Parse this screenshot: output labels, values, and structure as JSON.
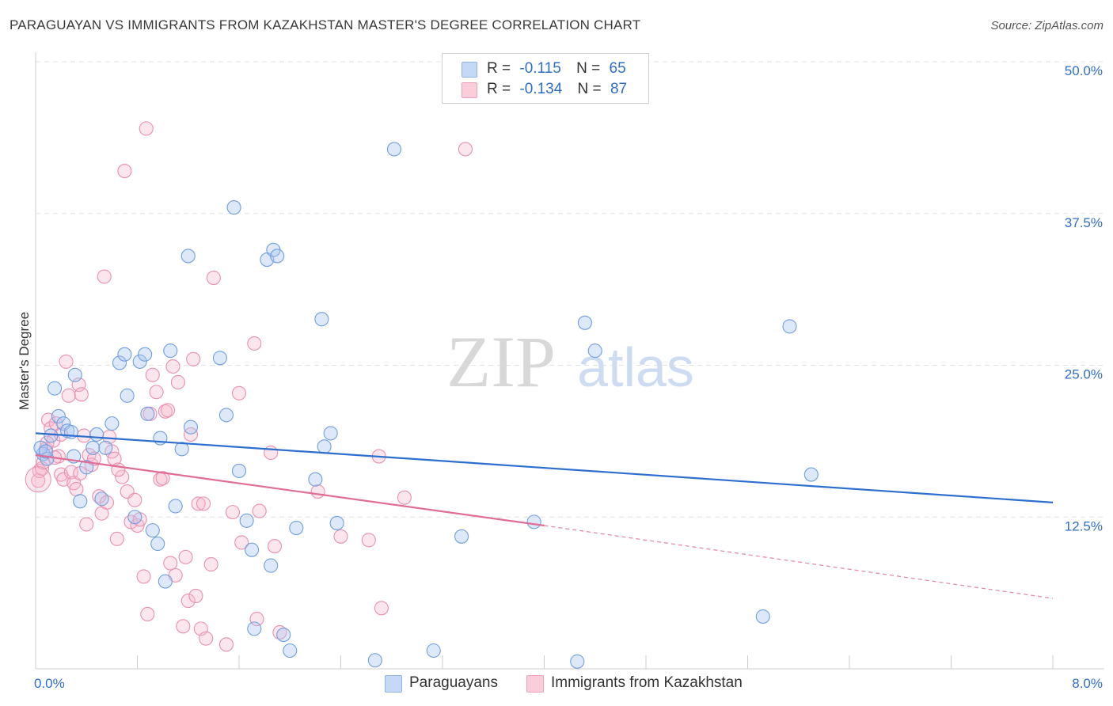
{
  "title": "PARAGUAYAN VS IMMIGRANTS FROM KAZAKHSTAN MASTER'S DEGREE CORRELATION CHART",
  "source": "Source: ZipAtlas.com",
  "watermark": {
    "zip": "ZIP",
    "atlas": "atlas"
  },
  "legend": {
    "rows": [
      {
        "r_label": "R =",
        "r_value": "-0.115",
        "n_label": "N =",
        "n_value": "65",
        "color": "#a9c6f0"
      },
      {
        "r_label": "R =",
        "r_value": "-0.134",
        "n_label": "N =",
        "n_value": "87",
        "color": "#f6b8cc"
      }
    ]
  },
  "bottom_legend": [
    {
      "label": "Paraguayans",
      "color": "#a9c6f0"
    },
    {
      "label": "Immigrants from Kazakhstan",
      "color": "#f6b8cc"
    }
  ],
  "chart_data": {
    "type": "scatter",
    "title": "PARAGUAYAN VS IMMIGRANTS FROM KAZAKHSTAN MASTER'S DEGREE CORRELATION CHART",
    "xlabel": "",
    "ylabel": "Master's Degree",
    "xlim": [
      0,
      8
    ],
    "ylim": [
      0,
      50
    ],
    "x_tick_labels": [
      "0.0%",
      "8.0%"
    ],
    "y_ticks": [
      12.5,
      25.0,
      37.5,
      50.0
    ],
    "y_tick_labels": [
      "12.5%",
      "25.0%",
      "37.5%",
      "50.0%"
    ],
    "grid": true,
    "legend_position": "top-center",
    "series": [
      {
        "name": "Paraguayans",
        "color": "#a9c6f0",
        "stroke": "#6f9fe0",
        "trend": {
          "x": [
            0,
            8
          ],
          "y": [
            19.4,
            13.7
          ],
          "color": "#2c6fce"
        },
        "points": [
          [
            0.06,
            17.7
          ],
          [
            0.09,
            17.3
          ],
          [
            0.12,
            19.2
          ],
          [
            0.15,
            23.1
          ],
          [
            0.18,
            20.8
          ],
          [
            0.22,
            20.2
          ],
          [
            0.25,
            19.6
          ],
          [
            0.28,
            19.5
          ],
          [
            0.31,
            24.2
          ],
          [
            0.35,
            13.8
          ],
          [
            0.4,
            16.6
          ],
          [
            0.45,
            18.2
          ],
          [
            0.48,
            19.3
          ],
          [
            0.52,
            14.0
          ],
          [
            0.55,
            18.2
          ],
          [
            0.6,
            20.2
          ],
          [
            0.66,
            25.2
          ],
          [
            0.7,
            25.9
          ],
          [
            0.72,
            22.5
          ],
          [
            0.78,
            12.5
          ],
          [
            0.82,
            25.3
          ],
          [
            0.86,
            25.9
          ],
          [
            0.88,
            21.0
          ],
          [
            0.92,
            11.4
          ],
          [
            0.96,
            10.3
          ],
          [
            0.98,
            19.0
          ],
          [
            1.02,
            7.2
          ],
          [
            1.06,
            26.2
          ],
          [
            1.1,
            13.4
          ],
          [
            1.15,
            18.1
          ],
          [
            1.2,
            34.0
          ],
          [
            1.22,
            19.9
          ],
          [
            1.45,
            25.6
          ],
          [
            1.5,
            20.9
          ],
          [
            1.56,
            38.0
          ],
          [
            1.6,
            16.3
          ],
          [
            1.66,
            12.2
          ],
          [
            1.7,
            9.8
          ],
          [
            1.72,
            3.3
          ],
          [
            1.82,
            33.7
          ],
          [
            1.85,
            8.5
          ],
          [
            1.87,
            34.5
          ],
          [
            1.9,
            34.0
          ],
          [
            1.95,
            2.8
          ],
          [
            2.0,
            1.5
          ],
          [
            2.05,
            11.6
          ],
          [
            2.2,
            15.6
          ],
          [
            2.25,
            28.8
          ],
          [
            2.27,
            18.3
          ],
          [
            2.32,
            19.4
          ],
          [
            2.37,
            12.0
          ],
          [
            2.67,
            0.7
          ],
          [
            2.82,
            42.8
          ],
          [
            3.13,
            1.5
          ],
          [
            3.35,
            10.9
          ],
          [
            3.92,
            12.1
          ],
          [
            4.26,
            0.6
          ],
          [
            4.32,
            28.5
          ],
          [
            4.4,
            26.2
          ],
          [
            5.72,
            4.3
          ],
          [
            5.93,
            28.2
          ],
          [
            6.1,
            16.0
          ],
          [
            0.04,
            18.2
          ],
          [
            0.08,
            17.9
          ],
          [
            0.3,
            17.5
          ]
        ]
      },
      {
        "name": "Immigrants from Kazakhstan",
        "color": "#f6b8cc",
        "stroke": "#ea8fae",
        "trend": {
          "x": [
            0,
            4.0
          ],
          "y": [
            17.6,
            11.8
          ],
          "dash_x": [
            4.0,
            8.0
          ],
          "dash_y": [
            11.8,
            5.8
          ],
          "color": "#e06d96"
        },
        "points": [
          [
            0.02,
            15.5
          ],
          [
            0.03,
            16.3
          ],
          [
            0.05,
            16.5
          ],
          [
            0.08,
            18.1
          ],
          [
            0.1,
            20.5
          ],
          [
            0.12,
            19.8
          ],
          [
            0.14,
            18.8
          ],
          [
            0.16,
            20.2
          ],
          [
            0.18,
            17.5
          ],
          [
            0.2,
            16.0
          ],
          [
            0.22,
            15.6
          ],
          [
            0.24,
            25.3
          ],
          [
            0.26,
            22.5
          ],
          [
            0.28,
            16.2
          ],
          [
            0.3,
            15.3
          ],
          [
            0.32,
            14.8
          ],
          [
            0.34,
            23.4
          ],
          [
            0.36,
            22.6
          ],
          [
            0.38,
            19.2
          ],
          [
            0.4,
            11.9
          ],
          [
            0.42,
            17.6
          ],
          [
            0.44,
            16.8
          ],
          [
            0.46,
            17.3
          ],
          [
            0.5,
            14.2
          ],
          [
            0.52,
            12.8
          ],
          [
            0.54,
            32.3
          ],
          [
            0.56,
            13.7
          ],
          [
            0.58,
            19.1
          ],
          [
            0.6,
            17.9
          ],
          [
            0.62,
            17.3
          ],
          [
            0.64,
            10.7
          ],
          [
            0.68,
            15.8
          ],
          [
            0.7,
            41.0
          ],
          [
            0.72,
            14.6
          ],
          [
            0.75,
            12.1
          ],
          [
            0.78,
            13.9
          ],
          [
            0.8,
            11.8
          ],
          [
            0.82,
            12.3
          ],
          [
            0.85,
            7.6
          ],
          [
            0.87,
            44.5
          ],
          [
            0.88,
            4.5
          ],
          [
            0.9,
            21.0
          ],
          [
            0.92,
            24.2
          ],
          [
            0.95,
            22.8
          ],
          [
            0.98,
            15.6
          ],
          [
            1.0,
            15.7
          ],
          [
            1.02,
            21.2
          ],
          [
            1.04,
            21.3
          ],
          [
            1.06,
            8.7
          ],
          [
            1.08,
            24.9
          ],
          [
            1.1,
            7.7
          ],
          [
            1.12,
            23.6
          ],
          [
            1.16,
            3.5
          ],
          [
            1.18,
            9.2
          ],
          [
            1.2,
            5.6
          ],
          [
            1.22,
            19.3
          ],
          [
            1.24,
            25.5
          ],
          [
            1.26,
            6.0
          ],
          [
            1.28,
            13.6
          ],
          [
            1.3,
            3.3
          ],
          [
            1.32,
            13.6
          ],
          [
            1.34,
            2.5
          ],
          [
            1.38,
            8.6
          ],
          [
            1.4,
            32.2
          ],
          [
            1.5,
            2.0
          ],
          [
            1.55,
            12.9
          ],
          [
            1.6,
            22.7
          ],
          [
            1.62,
            10.4
          ],
          [
            1.72,
            26.8
          ],
          [
            1.74,
            4.1
          ],
          [
            1.76,
            13.0
          ],
          [
            1.85,
            17.8
          ],
          [
            1.88,
            10.1
          ],
          [
            1.92,
            3.0
          ],
          [
            2.22,
            14.6
          ],
          [
            2.4,
            10.9
          ],
          [
            2.62,
            10.6
          ],
          [
            2.7,
            17.5
          ],
          [
            2.72,
            5.0
          ],
          [
            2.9,
            14.1
          ],
          [
            3.38,
            42.8
          ],
          [
            0.06,
            17.0
          ],
          [
            0.09,
            18.6
          ],
          [
            0.15,
            17.4
          ],
          [
            0.2,
            19.3
          ],
          [
            0.65,
            16.4
          ],
          [
            0.35,
            16.1
          ]
        ]
      }
    ]
  }
}
